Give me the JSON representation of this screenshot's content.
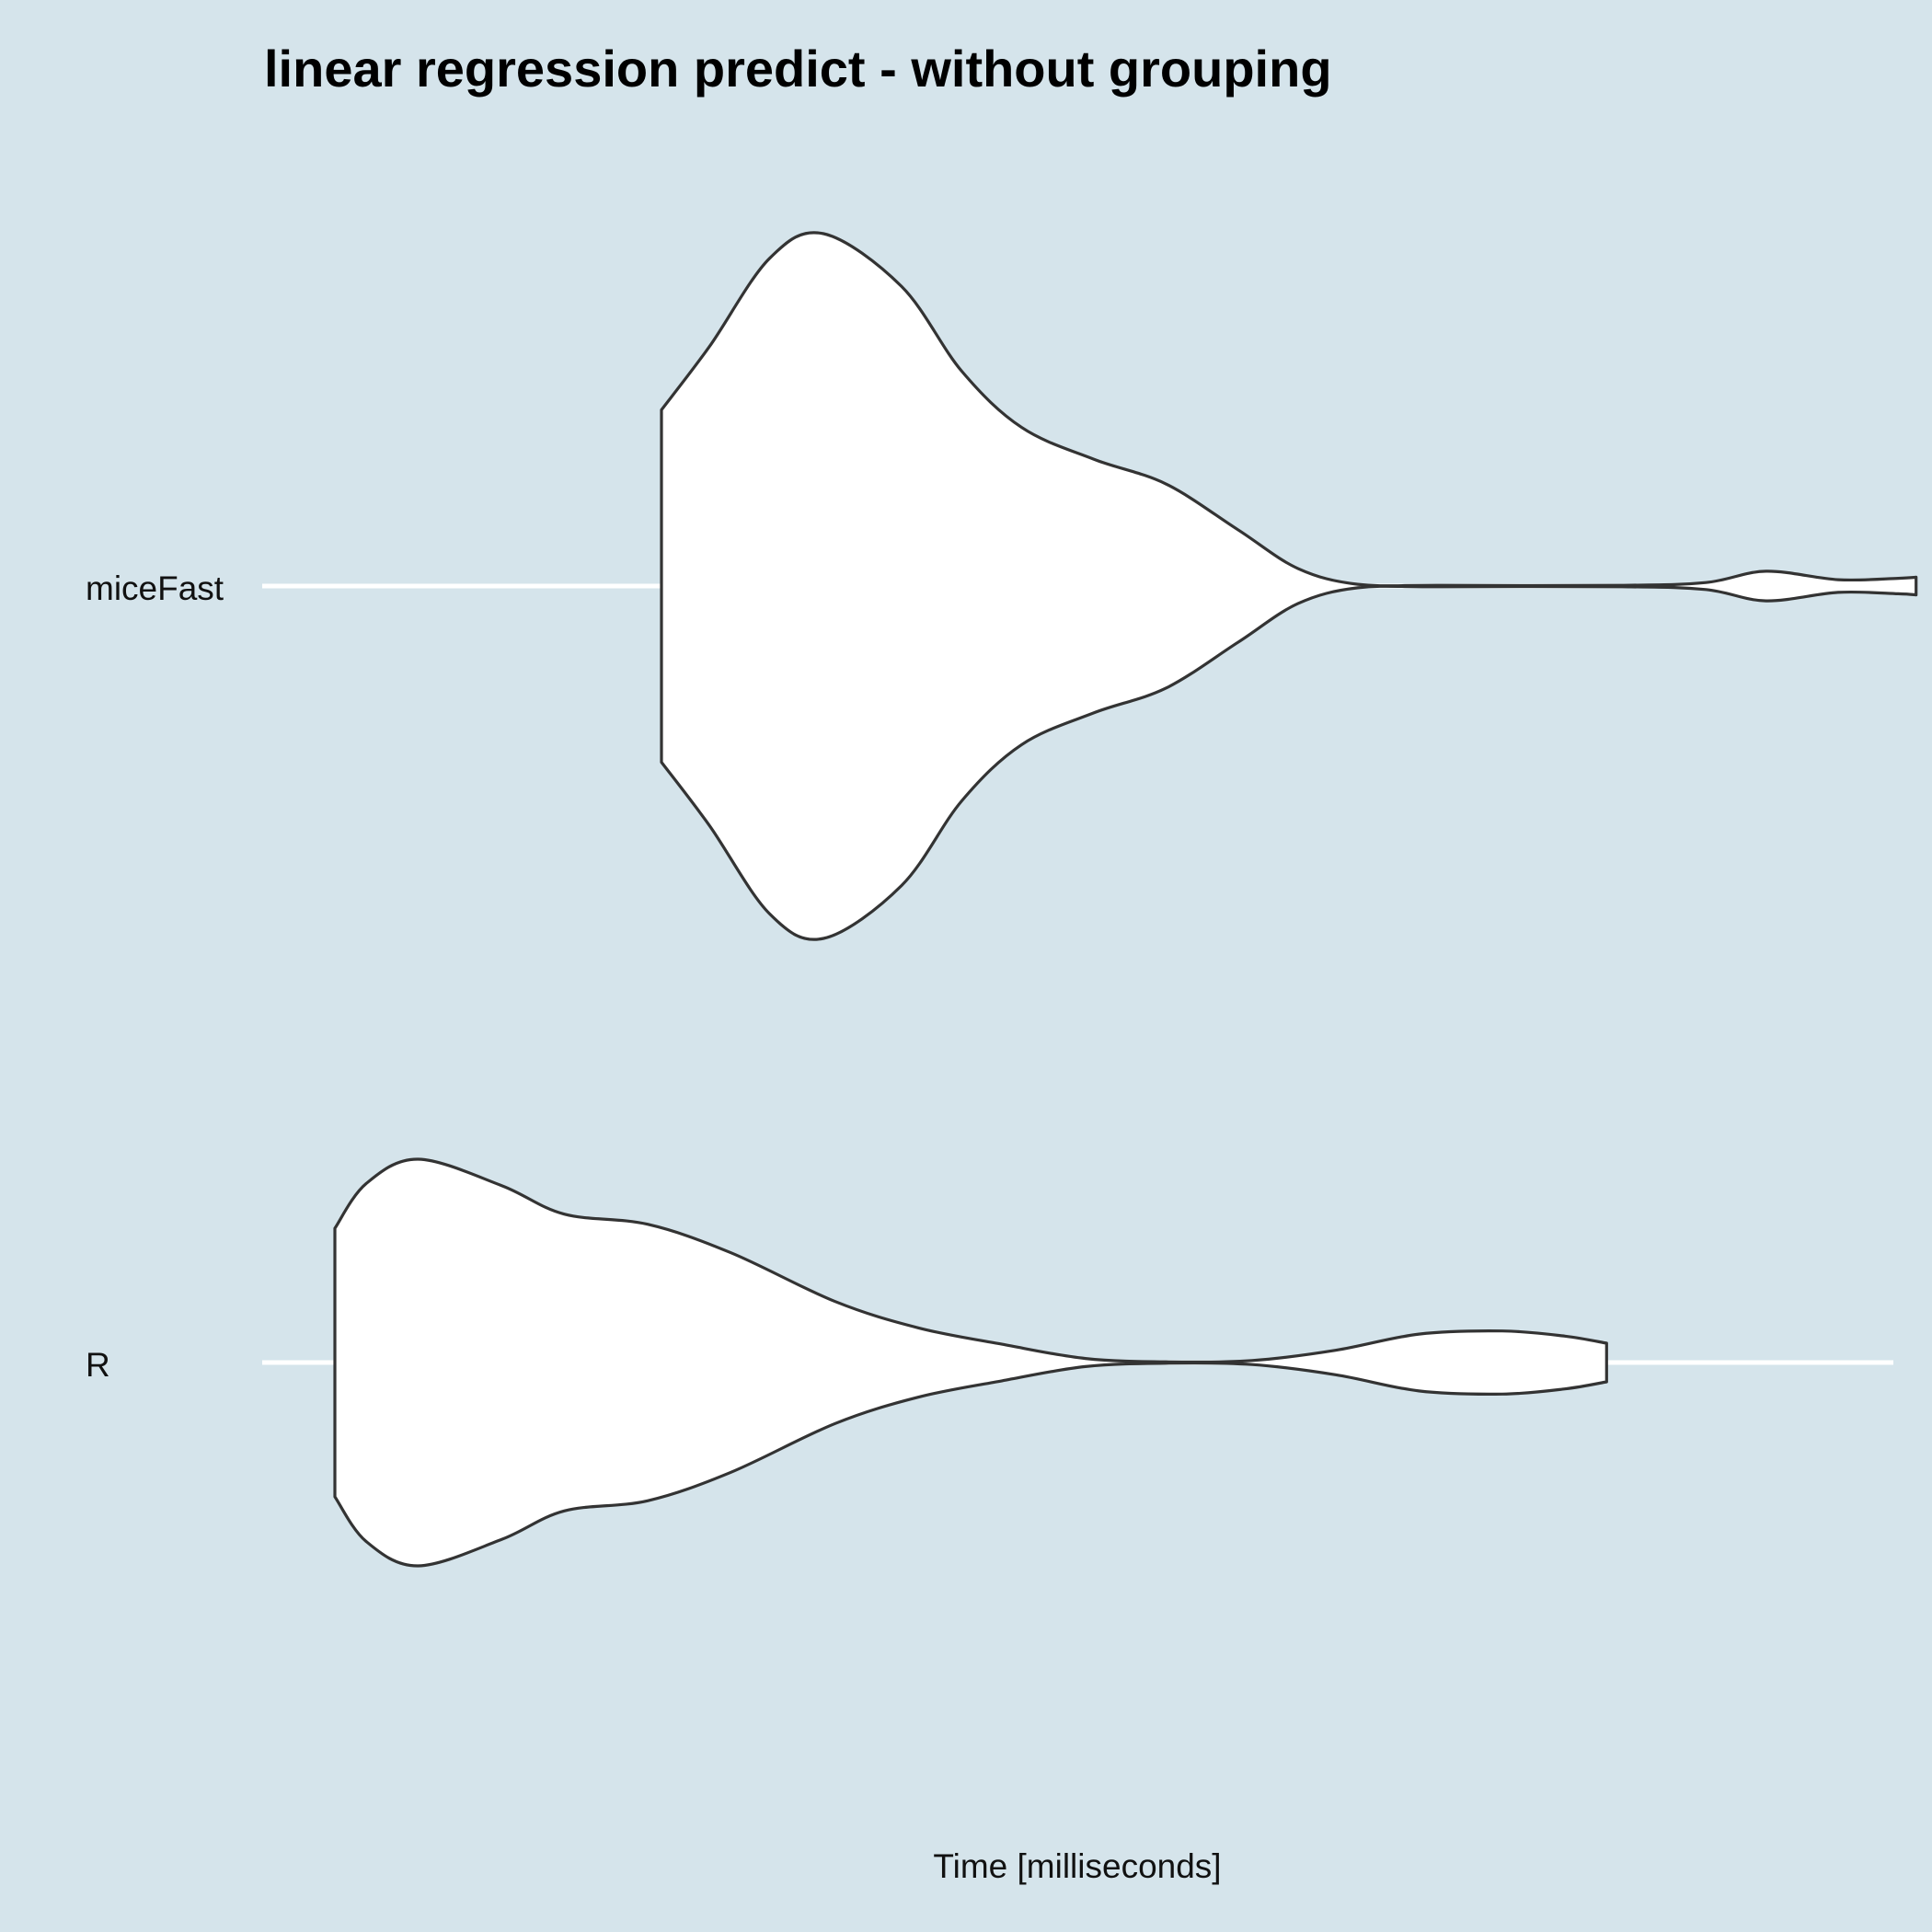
{
  "chart_data": {
    "type": "violin",
    "title": "linear regression predict - without grouping",
    "xlabel": "Time [milliseconds]",
    "ylabel": "",
    "categories": [
      "miceFast",
      "R"
    ],
    "x_ticks": [],
    "grid": "major-y-only",
    "orientation": "horizontal",
    "series": [
      {
        "category": "miceFast",
        "profile": [
          [
            0.0,
            0.5
          ],
          [
            0.4,
            0.68
          ],
          [
            0.9,
            0.93
          ],
          [
            1.35,
            1.0
          ],
          [
            2.0,
            0.85
          ],
          [
            2.5,
            0.61
          ],
          [
            3.0,
            0.45
          ],
          [
            3.6,
            0.36
          ],
          [
            4.2,
            0.29
          ],
          [
            4.8,
            0.16
          ],
          [
            5.3,
            0.05
          ],
          [
            5.8,
            0.005
          ],
          [
            6.5,
            0.002
          ],
          [
            8.0,
            0.002
          ],
          [
            8.7,
            0.01
          ],
          [
            9.2,
            0.042
          ],
          [
            9.8,
            0.018
          ],
          [
            10.3,
            0.022
          ],
          [
            10.45,
            0.025
          ]
        ]
      },
      {
        "category": "R",
        "profile": [
          [
            0.0,
            0.66
          ],
          [
            0.3,
            0.88
          ],
          [
            0.8,
            1.0
          ],
          [
            1.6,
            0.87
          ],
          [
            2.2,
            0.73
          ],
          [
            3.0,
            0.68
          ],
          [
            3.8,
            0.54
          ],
          [
            4.8,
            0.3
          ],
          [
            5.6,
            0.17
          ],
          [
            6.4,
            0.09
          ],
          [
            7.2,
            0.02
          ],
          [
            8.0,
            0.003
          ],
          [
            8.8,
            0.01
          ],
          [
            9.6,
            0.06
          ],
          [
            10.4,
            0.14
          ],
          [
            11.2,
            0.155
          ],
          [
            11.8,
            0.13
          ],
          [
            12.2,
            0.095
          ]
        ]
      }
    ]
  }
}
